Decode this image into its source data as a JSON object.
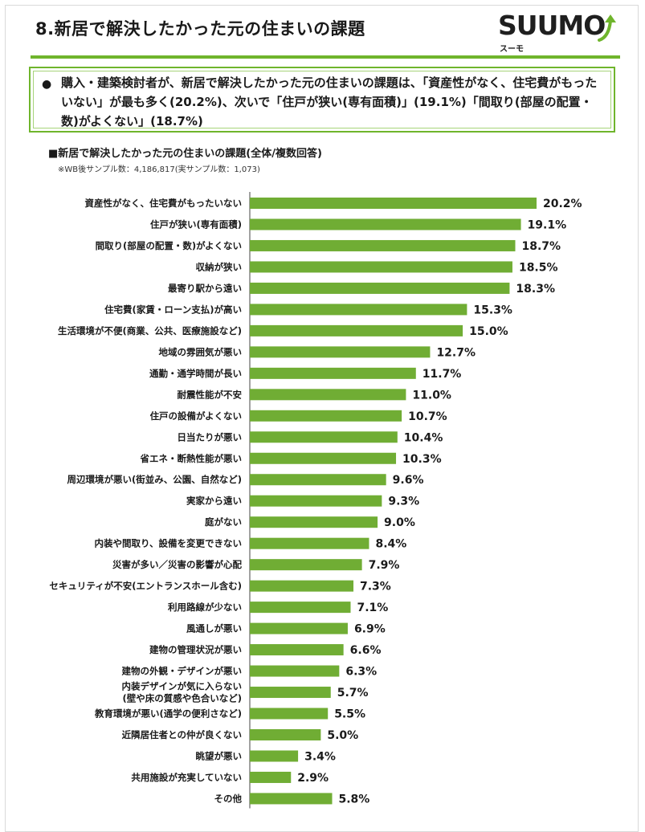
{
  "page": {
    "title": "8.新居で解決したかった元の住まいの課題",
    "logo_text": "SUUMO",
    "logo_sub": "スーモ",
    "summary_bullet": "●",
    "summary_text": "購入・建築検討者が、新居で解決したかった元の住まいの課題は、「資産性がなく、住宅費がもったいない」が最も多く(20.2%)、次いで「住戸が狭い(専有面積)」(19.1%)「間取り(部屋の配置・数)がよくない」(18.7%)",
    "chart_title": "■新居で解決したかった元の住まいの課題(全体/複数回答)",
    "chart_note": "※WB後サンプル数：4,186,817(実サンプル数：1,073)"
  },
  "colors": {
    "bar": "#70ad34",
    "accent": "#6fb52c"
  },
  "chart_data": {
    "type": "bar",
    "orientation": "horizontal",
    "unit": "%",
    "categories": [
      "資産性がなく、住宅費がもったいない",
      "住戸が狭い(専有面積)",
      "間取り(部屋の配置・数)がよくない",
      "収納が狭い",
      "最寄り駅から遠い",
      "住宅費(家賃・ローン支払)が高い",
      "生活環境が不便(商業、公共、医療施設など)",
      "地域の雰囲気が悪い",
      "通勤・通学時間が長い",
      "耐震性能が不安",
      "住戸の設備がよくない",
      "日当たりが悪い",
      "省エネ・断熱性能が悪い",
      "周辺環境が悪い(街並み、公園、自然など)",
      "実家から遠い",
      "庭がない",
      "内装や間取り、設備を変更できない",
      "災害が多い／災害の影響が心配",
      "セキュリティが不安(エントランスホール含む)",
      "利用路線が少ない",
      "風通しが悪い",
      "建物の管理状況が悪い",
      "建物の外観・デザインが悪い",
      "内装デザインが気に入らない\n(壁や床の質感や色合いなど)",
      "教育環境が悪い(通学の便利さなど)",
      "近隣居住者との仲が良くない",
      "眺望が悪い",
      "共用施設が充実していない",
      "その他"
    ],
    "values": [
      20.2,
      19.1,
      18.7,
      18.5,
      18.3,
      15.3,
      15.0,
      12.7,
      11.7,
      11.0,
      10.7,
      10.4,
      10.3,
      9.6,
      9.3,
      9.0,
      8.4,
      7.9,
      7.3,
      7.1,
      6.9,
      6.6,
      6.3,
      5.7,
      5.5,
      5.0,
      3.4,
      2.9,
      5.8
    ],
    "data_labels": [
      "20.2%",
      "19.1%",
      "18.7%",
      "18.5%",
      "18.3%",
      "15.3%",
      "15.0%",
      "12.7%",
      "11.7%",
      "11.0%",
      "10.7%",
      "10.4%",
      "10.3%",
      "9.6%",
      "9.3%",
      "9.0%",
      "8.4%",
      "7.9%",
      "7.3%",
      "7.1%",
      "6.9%",
      "6.6%",
      "6.3%",
      "5.7%",
      "5.5%",
      "5.0%",
      "3.4%",
      "2.9%",
      "5.8%"
    ],
    "xlim": [
      0,
      20.2
    ],
    "grid": false,
    "legend": false
  }
}
